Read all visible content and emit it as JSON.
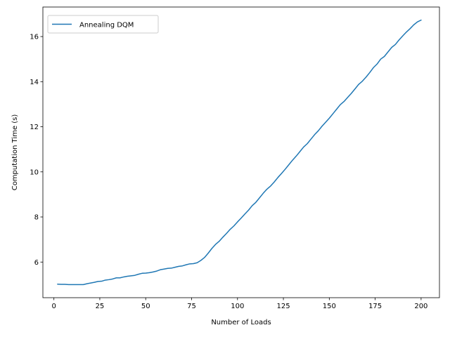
{
  "chart_data": {
    "type": "line",
    "title": "",
    "xlabel": "Number of Loads",
    "ylabel": "Computation Time (s)",
    "xlim": [
      -6,
      210
    ],
    "ylim": [
      4.42,
      17.31
    ],
    "xticks": [
      0,
      25,
      50,
      75,
      100,
      125,
      150,
      175,
      200
    ],
    "yticks": [
      6,
      8,
      10,
      12,
      14,
      16
    ],
    "xtick_labels": [
      "0",
      "25",
      "50",
      "75",
      "100",
      "125",
      "150",
      "175",
      "200"
    ],
    "ytick_labels": [
      "6",
      "8",
      "10",
      "12",
      "14",
      "16"
    ],
    "grid": false,
    "legend_position": "upper-left",
    "series": [
      {
        "name": "Annealing DQM",
        "color": "#1f77b4",
        "x": [
          2,
          4,
          6,
          8,
          10,
          12,
          14,
          16,
          18,
          20,
          22,
          24,
          26,
          28,
          30,
          32,
          34,
          36,
          38,
          40,
          42,
          44,
          46,
          48,
          50,
          52,
          54,
          56,
          58,
          60,
          62,
          64,
          66,
          68,
          70,
          72,
          74,
          76,
          78,
          80,
          82,
          84,
          86,
          88,
          90,
          92,
          94,
          96,
          98,
          100,
          102,
          104,
          106,
          108,
          110,
          112,
          114,
          116,
          118,
          120,
          122,
          124,
          126,
          128,
          130,
          132,
          134,
          136,
          138,
          140,
          142,
          144,
          146,
          148,
          150,
          152,
          154,
          156,
          158,
          160,
          162,
          164,
          166,
          168,
          170,
          172,
          174,
          176,
          178,
          180,
          182,
          184,
          186,
          188,
          190,
          192,
          194,
          196,
          198,
          200
        ],
        "values": [
          5.02,
          5.01,
          5.01,
          5.0,
          5.0,
          5.0,
          5.0,
          5.0,
          5.04,
          5.07,
          5.1,
          5.14,
          5.15,
          5.2,
          5.22,
          5.25,
          5.3,
          5.3,
          5.34,
          5.37,
          5.39,
          5.41,
          5.46,
          5.5,
          5.51,
          5.53,
          5.56,
          5.6,
          5.66,
          5.69,
          5.72,
          5.73,
          5.77,
          5.81,
          5.83,
          5.88,
          5.92,
          5.93,
          5.97,
          6.07,
          6.2,
          6.39,
          6.6,
          6.78,
          6.92,
          7.1,
          7.27,
          7.45,
          7.6,
          7.78,
          7.95,
          8.13,
          8.3,
          8.5,
          8.65,
          8.85,
          9.05,
          9.23,
          9.37,
          9.55,
          9.75,
          9.93,
          10.12,
          10.32,
          10.52,
          10.7,
          10.9,
          11.1,
          11.25,
          11.45,
          11.65,
          11.82,
          12.02,
          12.2,
          12.38,
          12.58,
          12.78,
          12.98,
          13.12,
          13.3,
          13.48,
          13.68,
          13.88,
          14.02,
          14.2,
          14.4,
          14.62,
          14.78,
          15.0,
          15.12,
          15.32,
          15.52,
          15.65,
          15.85,
          16.03,
          16.2,
          16.35,
          16.52,
          16.65,
          16.73
        ]
      }
    ]
  }
}
